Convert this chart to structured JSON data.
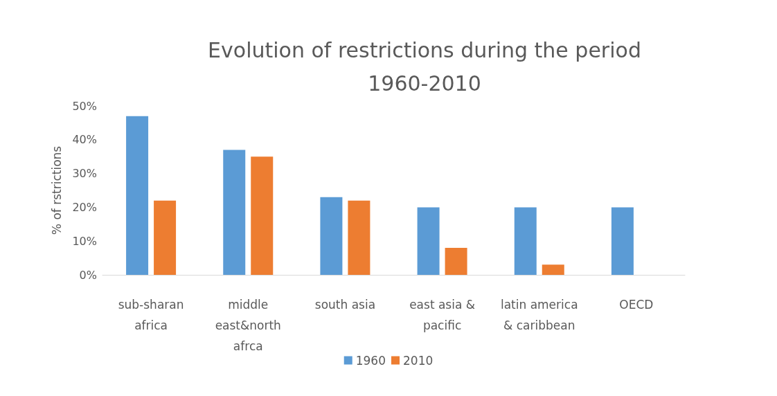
{
  "chart_data": {
    "type": "bar",
    "title": "Evolution of restrictions during the period\n1960-2010",
    "ylabel": "% of rstrictions",
    "categories": [
      "sub-sharan\nafrica",
      "middle\neast&north\nafrca",
      "south asia",
      "east asia &\npacific",
      "latin america\n& caribbean",
      "OECD"
    ],
    "series": [
      {
        "name": "1960",
        "color": "#5b9bd5",
        "values": [
          47,
          37,
          23,
          20,
          20,
          20
        ]
      },
      {
        "name": "2010",
        "color": "#ed7d31",
        "values": [
          22,
          35,
          22,
          8,
          3,
          0
        ]
      }
    ],
    "ylim": [
      0,
      50
    ],
    "yticks": [
      {
        "value": 0,
        "label": "0%"
      },
      {
        "value": 10,
        "label": "10%"
      },
      {
        "value": 20,
        "label": "20%"
      },
      {
        "value": 30,
        "label": "30%"
      },
      {
        "value": 40,
        "label": "40%"
      },
      {
        "value": 50,
        "label": "50%"
      }
    ],
    "grid": false,
    "legend": "bottom"
  }
}
